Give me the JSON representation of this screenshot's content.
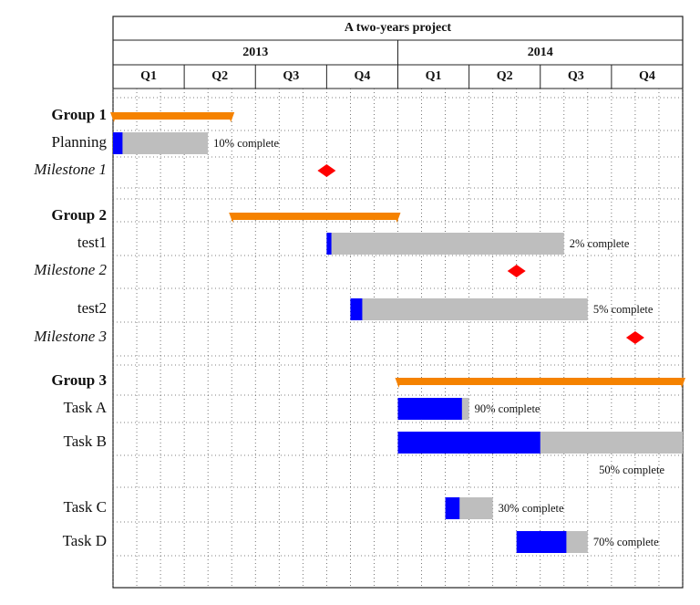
{
  "chart_data": {
    "type": "gantt",
    "title": "A two-years project",
    "years": [
      "2013",
      "2014"
    ],
    "quarters": [
      "Q1",
      "Q2",
      "Q3",
      "Q4",
      "Q1",
      "Q2",
      "Q3",
      "Q4"
    ],
    "xlim": [
      0,
      24
    ],
    "xticks": [
      0,
      1,
      2,
      3,
      4,
      5,
      6,
      7,
      8,
      9,
      10,
      11,
      12,
      13,
      14,
      15,
      16,
      17,
      18,
      19,
      20,
      21,
      22,
      23,
      24
    ],
    "grid": true,
    "colors": {
      "group": "#f58200",
      "bar": "#bebebe",
      "progress": "#0000ff",
      "milestone": "#ff0000"
    },
    "rows": [
      {
        "kind": "group",
        "label": "Group 1",
        "start": 0,
        "end": 5
      },
      {
        "kind": "bar",
        "label": "Planning",
        "start": 0,
        "end": 4,
        "progress": 10,
        "progress_label": "10% complete"
      },
      {
        "kind": "milestone",
        "label": "Milestone 1",
        "at": 9
      },
      {
        "kind": "group",
        "label": "Group 2",
        "start": 5,
        "end": 12
      },
      {
        "kind": "bar",
        "label": "test1",
        "start": 9,
        "end": 19,
        "progress": 2,
        "progress_label": "2% complete"
      },
      {
        "kind": "milestone",
        "label": "Milestone 2",
        "at": 17
      },
      {
        "kind": "bar",
        "label": "test2",
        "start": 10,
        "end": 20,
        "progress": 5,
        "progress_label": "5% complete"
      },
      {
        "kind": "milestone",
        "label": "Milestone 3",
        "at": 22
      },
      {
        "kind": "group",
        "label": "Group 3",
        "start": 12,
        "end": 24
      },
      {
        "kind": "bar",
        "label": "Task A",
        "start": 12,
        "end": 15,
        "progress": 90,
        "progress_label": "90% complete"
      },
      {
        "kind": "bar",
        "label": "Task B",
        "start": 12,
        "end": 24,
        "progress": 50,
        "progress_label": "50% complete"
      },
      {
        "kind": "bar",
        "label": "Task C",
        "start": 14,
        "end": 16,
        "progress": 30,
        "progress_label": "30% complete"
      },
      {
        "kind": "bar",
        "label": "Task D",
        "start": 17,
        "end": 20,
        "progress": 70,
        "progress_label": "70% complete"
      }
    ]
  }
}
